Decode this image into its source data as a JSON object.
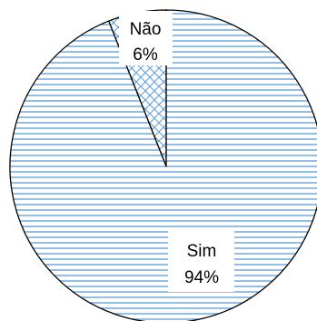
{
  "chart_data": {
    "type": "pie",
    "categories": [
      "Não",
      "Sim"
    ],
    "values": [
      6,
      94
    ],
    "labels": [
      {
        "name": "Não",
        "value": "6%"
      },
      {
        "name": "Sim",
        "value": "94%"
      }
    ],
    "colors": {
      "hatch_line": "#5b9bd5",
      "outline": "#000000",
      "background": "#ffffff"
    },
    "patterns": {
      "Não": "diagonal-cross-hatch",
      "Sim": "horizontal-lines"
    },
    "legend": "none",
    "grid": false
  }
}
